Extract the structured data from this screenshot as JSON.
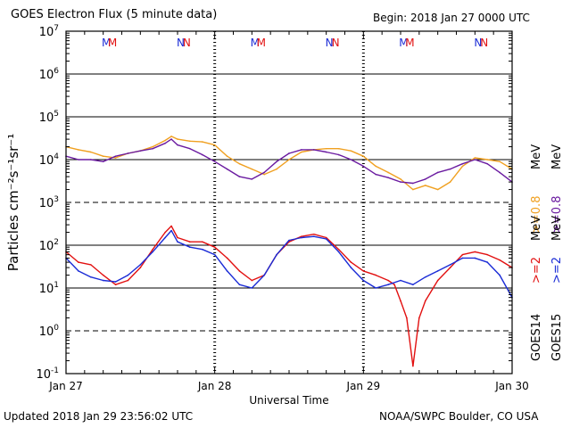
{
  "header": {
    "title": "GOES Electron Flux (5 minute data)",
    "begin": "Begin: 2018 Jan 27 0000 UTC"
  },
  "footer": {
    "updated": "Updated 2018 Jan 29 23:56:02 UTC",
    "credit": "NOAA/SWPC Boulder, CO USA"
  },
  "colors": {
    "goes15_ge2": "#1a2bd6",
    "goes14_ge2": "#e21010",
    "goes14_ge08": "#f0a020",
    "goes15_ge08": "#6a1aa0",
    "M_label": "#1a2bd6",
    "N_label": "#e21010"
  },
  "chart_data": {
    "type": "line",
    "title": "GOES Electron Flux (5 minute data)",
    "xlabel": "Universal Time",
    "ylabel": "Particles cm⁻²s⁻¹sr⁻¹",
    "yscale": "log",
    "ylim": [
      0.1,
      10000000
    ],
    "xlim_hours": [
      0,
      72
    ],
    "x_tick_labels": [
      "Jan 27",
      "Jan 28",
      "Jan 29",
      "Jan 30"
    ],
    "y_tick_labels": [
      {
        "base": "10",
        "exp": "7"
      },
      {
        "base": "10",
        "exp": "6"
      },
      {
        "base": "10",
        "exp": "5"
      },
      {
        "base": "10",
        "exp": "4"
      },
      {
        "base": "10",
        "exp": "3"
      },
      {
        "base": "10",
        "exp": "2"
      },
      {
        "base": "10",
        "exp": "1"
      },
      {
        "base": "10",
        "exp": "0"
      },
      {
        "base": "10",
        "exp": "-1"
      }
    ],
    "dashed_levels": [
      1000,
      1
    ],
    "top_markers": [
      {
        "day": 0,
        "hour": 6.5,
        "text": "M",
        "color": "M_label"
      },
      {
        "day": 0,
        "hour": 7.5,
        "text": "M",
        "color": "N_label"
      },
      {
        "day": 0,
        "hour": 18.5,
        "text": "N",
        "color": "M_label"
      },
      {
        "day": 0,
        "hour": 19.5,
        "text": "N",
        "color": "N_label"
      },
      {
        "day": 1,
        "hour": 30.5,
        "text": "M",
        "color": "M_label"
      },
      {
        "day": 1,
        "hour": 31.5,
        "text": "M",
        "color": "N_label"
      },
      {
        "day": 1,
        "hour": 42.5,
        "text": "N",
        "color": "M_label"
      },
      {
        "day": 1,
        "hour": 43.5,
        "text": "N",
        "color": "N_label"
      },
      {
        "day": 2,
        "hour": 54.5,
        "text": "M",
        "color": "M_label"
      },
      {
        "day": 2,
        "hour": 55.5,
        "text": "M",
        "color": "N_label"
      },
      {
        "day": 2,
        "hour": 66.5,
        "text": "N",
        "color": "M_label"
      },
      {
        "day": 2,
        "hour": 67.5,
        "text": "N",
        "color": "N_label"
      }
    ],
    "legend": {
      "placement": "right",
      "columns": [
        {
          "satellite": "GOES14",
          "ge08": ">=0.8",
          "ge2": ">=2",
          "ge08_color": "goes14_ge08",
          "ge2_color": "goes14_ge2"
        },
        {
          "satellite": "GOES15",
          "ge08": ">=0.8",
          "ge2": ">=2",
          "ge08_color": "goes15_ge08",
          "ge2_color": "goes15_ge2"
        }
      ],
      "unit": "MeV"
    },
    "series": [
      {
        "name": "GOES14 >=0.8 MeV",
        "color": "goes14_ge08",
        "x": [
          0,
          2,
          4,
          6,
          8,
          10,
          12,
          14,
          16,
          17,
          18,
          20,
          22,
          24,
          26,
          28,
          30,
          32,
          34,
          36,
          38,
          40,
          42,
          44,
          46,
          48,
          50,
          52,
          54,
          56,
          58,
          60,
          62,
          64,
          66,
          68,
          70,
          72
        ],
        "y": [
          20000,
          17000,
          15000,
          12000,
          11000,
          14000,
          16000,
          20000,
          28000,
          35000,
          30000,
          27000,
          26000,
          22000,
          12000,
          8000,
          6000,
          4500,
          6000,
          10000,
          15000,
          17000,
          18000,
          18000,
          16000,
          12000,
          7000,
          5000,
          3500,
          2000,
          2500,
          2000,
          3000,
          7000,
          11000,
          10000,
          9000,
          6000
        ]
      },
      {
        "name": "GOES15 >=0.8 MeV",
        "color": "goes15_ge08",
        "x": [
          0,
          2,
          4,
          6,
          8,
          10,
          12,
          14,
          16,
          17,
          18,
          20,
          22,
          24,
          26,
          28,
          30,
          32,
          34,
          36,
          38,
          40,
          42,
          44,
          46,
          48,
          50,
          52,
          54,
          56,
          58,
          60,
          62,
          64,
          66,
          68,
          70,
          72
        ],
        "y": [
          12000,
          10000,
          10000,
          9000,
          12000,
          14000,
          16000,
          18000,
          24000,
          30000,
          22000,
          18000,
          13000,
          9000,
          6000,
          4000,
          3500,
          5000,
          9000,
          14000,
          17000,
          17000,
          15000,
          13000,
          10000,
          7000,
          4500,
          3800,
          3000,
          2800,
          3500,
          5000,
          6000,
          8000,
          10000,
          8000,
          5000,
          3000
        ]
      },
      {
        "name": "GOES14 >=2 MeV",
        "color": "goes14_ge2",
        "x": [
          0,
          2,
          4,
          6,
          8,
          10,
          12,
          14,
          16,
          17,
          18,
          20,
          22,
          24,
          26,
          28,
          30,
          32,
          34,
          36,
          38,
          40,
          42,
          44,
          46,
          48,
          50,
          52,
          53,
          54,
          55,
          56,
          57,
          58,
          60,
          62,
          64,
          66,
          68,
          70,
          72
        ],
        "y": [
          70,
          40,
          35,
          20,
          12,
          15,
          30,
          80,
          200,
          280,
          150,
          120,
          120,
          90,
          50,
          25,
          15,
          20,
          60,
          120,
          160,
          180,
          150,
          80,
          40,
          25,
          20,
          15,
          12,
          5,
          2,
          0.15,
          2,
          5,
          15,
          30,
          60,
          70,
          60,
          45,
          30
        ]
      },
      {
        "name": "GOES15 >=2 MeV",
        "color": "goes15_ge2",
        "x": [
          0,
          2,
          4,
          6,
          8,
          10,
          12,
          14,
          16,
          17,
          18,
          20,
          22,
          24,
          26,
          28,
          30,
          32,
          34,
          36,
          38,
          40,
          42,
          44,
          46,
          48,
          50,
          52,
          54,
          56,
          58,
          60,
          62,
          64,
          66,
          68,
          70,
          72
        ],
        "y": [
          50,
          25,
          18,
          15,
          14,
          20,
          35,
          70,
          150,
          220,
          120,
          90,
          80,
          60,
          25,
          12,
          10,
          20,
          60,
          130,
          150,
          160,
          140,
          70,
          30,
          15,
          10,
          12,
          15,
          12,
          18,
          25,
          35,
          50,
          50,
          40,
          20,
          6
        ]
      }
    ]
  }
}
